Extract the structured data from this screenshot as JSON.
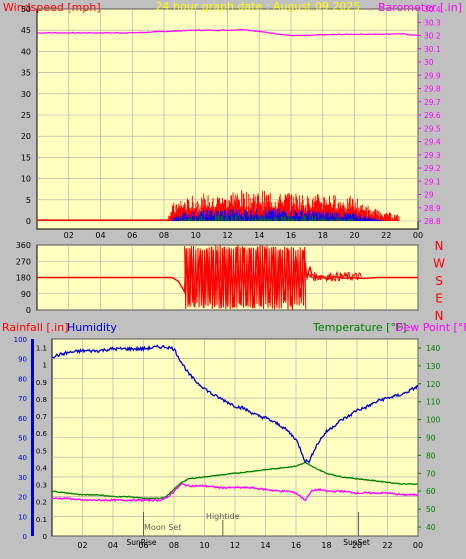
{
  "title": "24 hour graph date : August 09 2025",
  "colors": {
    "background": "#c0c0c0",
    "plot_background": "#ffffc0",
    "grid": "#a8a8a8",
    "windspeed": "#ff0000",
    "gust": "#0000ff",
    "avg_wind": "#008000",
    "barometer": "#ff00ff",
    "direction": "#ff0000",
    "humidity": "#0000cc",
    "temperature": "#008000",
    "dewpoint": "#ff00ff",
    "rain": "#0000cc",
    "title": "#ffff00"
  },
  "chart_data": [
    {
      "type": "line",
      "name": "wind-barometer",
      "ylabel_left": "Windspeed [mph]",
      "ylabel_right": "Barometer [.in]",
      "x_ticks": [
        "02",
        "04",
        "06",
        "08",
        "10",
        "12",
        "14",
        "16",
        "18",
        "20",
        "22",
        "00"
      ],
      "left_ticks": [
        "0",
        "5",
        "10",
        "15",
        "20",
        "25",
        "30",
        "35",
        "40",
        "45",
        "50"
      ],
      "right_ticks": [
        "28.8",
        "28.9",
        "29",
        "29.1",
        "29.2",
        "29.3",
        "29.4",
        "29.5",
        "29.6",
        "29.7",
        "29.8",
        "29.9",
        "30",
        "30.1",
        "30.2",
        "30.3",
        "30.4"
      ],
      "ylim_left": [
        0,
        50
      ],
      "ylim_right": [
        28.8,
        30.4
      ],
      "xlim_hours": [
        0,
        24
      ],
      "barometer": {
        "hours": [
          0,
          2,
          4,
          6,
          8,
          10,
          12,
          13,
          14,
          16,
          17,
          18,
          20,
          22,
          23,
          23.5,
          24
        ],
        "values": [
          30.22,
          30.22,
          30.22,
          30.22,
          30.23,
          30.24,
          30.24,
          30.245,
          30.23,
          30.2,
          30.2,
          30.205,
          30.21,
          30.21,
          30.215,
          30.205,
          30.205
        ]
      },
      "windspeed_envelope": {
        "hours": [
          0,
          8.3,
          8.5,
          9,
          10,
          11,
          12,
          13,
          14,
          15,
          16,
          17,
          18,
          19,
          20,
          20.5,
          21,
          22,
          22.8
        ],
        "values": [
          0,
          0,
          3,
          4,
          5,
          5.5,
          6,
          6.5,
          6,
          6,
          6,
          5.5,
          5.5,
          5,
          4.5,
          3.5,
          2,
          1,
          0
        ]
      },
      "gust_envelope": {
        "hours": [
          0,
          8.3,
          9,
          10,
          12,
          14,
          16,
          18,
          20,
          21,
          22
        ],
        "values": [
          0,
          0,
          2,
          2.5,
          3,
          3,
          3,
          2.5,
          2,
          1,
          0
        ]
      }
    },
    {
      "type": "scatter",
      "name": "wind-direction",
      "ylabel_right": [
        "N",
        "W",
        "S",
        "E",
        "N"
      ],
      "left_ticks": [
        "0",
        "90",
        "180",
        "270",
        "360"
      ],
      "ylim": [
        0,
        360
      ],
      "xlim_hours": [
        0,
        24
      ],
      "hours": [
        0,
        8.5,
        8.9,
        9.3,
        9.4,
        9.6,
        9.7,
        9.9,
        10,
        10.3,
        10.5,
        10.7,
        10.9,
        11,
        11.2,
        11.3,
        11.6,
        11.8,
        12,
        12.1,
        12.4,
        12.6,
        12.8,
        13,
        13.2,
        13.4,
        13.6,
        13.9,
        14.1,
        14.4,
        14.6,
        14.9,
        15.1,
        15.3,
        15.6,
        15.8,
        16,
        16.3,
        16.6,
        16.8,
        17,
        17.2,
        17.3,
        17.6,
        17.9,
        18.3,
        18.8,
        19.3,
        19.8,
        20.5,
        21.5,
        24
      ],
      "values": [
        180,
        180,
        160,
        100,
        340,
        30,
        340,
        20,
        90,
        330,
        10,
        340,
        40,
        350,
        20,
        330,
        10,
        350,
        20,
        340,
        15,
        350,
        30,
        345,
        25,
        340,
        10,
        350,
        20,
        340,
        40,
        350,
        30,
        330,
        50,
        340,
        20,
        300,
        70,
        330,
        180,
        240,
        200,
        180,
        190,
        170,
        185,
        175,
        180,
        175,
        180,
        180
      ]
    },
    {
      "type": "line",
      "name": "rain-humidity-temperature",
      "ylabel_left": "Rainfall [.in]",
      "ylabel_left2": "Humidity",
      "ylabel_right": "Temperature [°F]",
      "ylabel_right2": "Dew Point [°F]",
      "x_ticks": [
        "02",
        "04",
        "06",
        "08",
        "10",
        "12",
        "14",
        "16",
        "18",
        "20",
        "22",
        "00"
      ],
      "humidity_ticks": [
        "0",
        "10",
        "20",
        "30",
        "40",
        "50",
        "60",
        "70",
        "80",
        "90",
        "100"
      ],
      "rain_ticks": [
        "0",
        "0.1",
        "0.2",
        "0.3",
        "0.4",
        "0.5",
        "0.6",
        "0.7",
        "0.8",
        "0.9",
        "1",
        "1.1"
      ],
      "temp_ticks": [
        "40",
        "50",
        "60",
        "70",
        "80",
        "90",
        "100",
        "110",
        "120",
        "130",
        "140"
      ],
      "ylim_humidity": [
        0,
        100
      ],
      "ylim_rain": [
        0,
        1.15
      ],
      "ylim_temp": [
        35,
        145
      ],
      "xlim_hours": [
        0,
        24
      ],
      "annotations": {
        "sunrise": "SunRise",
        "moonset": "Moon Set",
        "sunset": "SunSet",
        "hightide": "Hightide",
        "sunrise_hour": 6.0,
        "moonset_hour": 6.1,
        "sunset_hour": 20.1,
        "hightide_hour": 11.2
      },
      "humidity": {
        "hours": [
          0,
          1,
          2,
          3,
          4,
          5,
          6,
          7,
          7.5,
          8,
          8.5,
          9,
          9.5,
          10,
          10.5,
          11,
          11.5,
          12,
          12.5,
          13,
          13.5,
          14,
          14.5,
          15,
          15.5,
          16,
          16.3,
          16.6,
          16.9,
          17.2,
          17.6,
          18,
          18.5,
          19,
          19.5,
          20,
          20.5,
          21,
          21.5,
          22,
          22.5,
          23,
          23.5,
          24
        ],
        "values": [
          91,
          93,
          94,
          94,
          95,
          95,
          95,
          96,
          96,
          95,
          88,
          82,
          78,
          75,
          72,
          70,
          68,
          66,
          65,
          63,
          61,
          60,
          58,
          56,
          53,
          49,
          44,
          38,
          38,
          44,
          49,
          53,
          56,
          59,
          61,
          64,
          65,
          67,
          69,
          70,
          71,
          72,
          74,
          76
        ]
      },
      "temperature": {
        "hours": [
          0,
          1,
          2,
          3,
          4,
          5,
          6,
          7,
          7.5,
          8,
          8.5,
          9,
          10,
          11,
          12,
          13,
          14,
          15,
          16,
          16.6,
          17,
          17.5,
          18,
          19,
          20,
          21,
          22,
          23,
          24
        ],
        "values": [
          60,
          59,
          58,
          58,
          57,
          57,
          56,
          56,
          57,
          61,
          65,
          67,
          68,
          69,
          70,
          71,
          72,
          73,
          74,
          76,
          74,
          72,
          70,
          68,
          67,
          66,
          65,
          64,
          64
        ]
      },
      "dewpoint": {
        "hours": [
          0,
          1,
          2,
          3,
          4,
          5,
          6,
          7,
          7.5,
          8,
          8.5,
          9,
          10,
          11,
          12,
          13,
          14,
          15,
          15.5,
          16,
          16.3,
          16.6,
          17,
          17.5,
          18,
          19,
          20,
          21,
          22,
          23,
          24
        ],
        "values": [
          56,
          56,
          55,
          55,
          55,
          55,
          55,
          55,
          56,
          60,
          64,
          63,
          63,
          62,
          62,
          62,
          61,
          60,
          60,
          59,
          57,
          55,
          60,
          61,
          60,
          60,
          59,
          59,
          59,
          58,
          58
        ]
      }
    }
  ]
}
